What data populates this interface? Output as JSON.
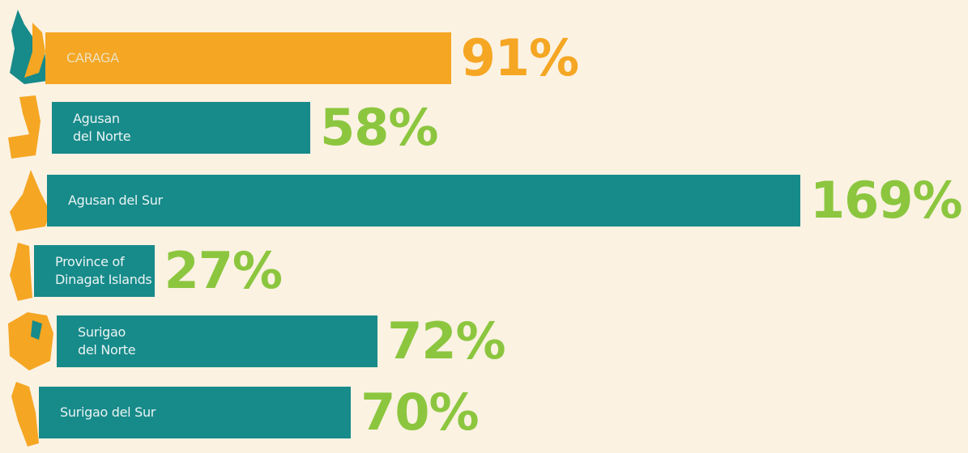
{
  "chart_data": {
    "type": "bar",
    "orientation": "horizontal",
    "categories": [
      "CARAGA",
      "Agusan\ndel Norte",
      "Agusan del Sur",
      "Province of\nDinagat Islands",
      "Surigao\ndel Norte",
      "Surigao del Sur"
    ],
    "values": [
      91,
      58,
      169,
      27,
      72,
      70
    ],
    "value_labels": [
      "91%",
      "58%",
      "169%",
      "27%",
      "72%",
      "70%"
    ],
    "colors": [
      "#f5a623",
      "#178a8a",
      "#178a8a",
      "#178a8a",
      "#178a8a",
      "#178a8a"
    ],
    "label_colors": [
      "#f5a623",
      "#8cc63f",
      "#8cc63f",
      "#8cc63f",
      "#8cc63f",
      "#8cc63f"
    ]
  }
}
